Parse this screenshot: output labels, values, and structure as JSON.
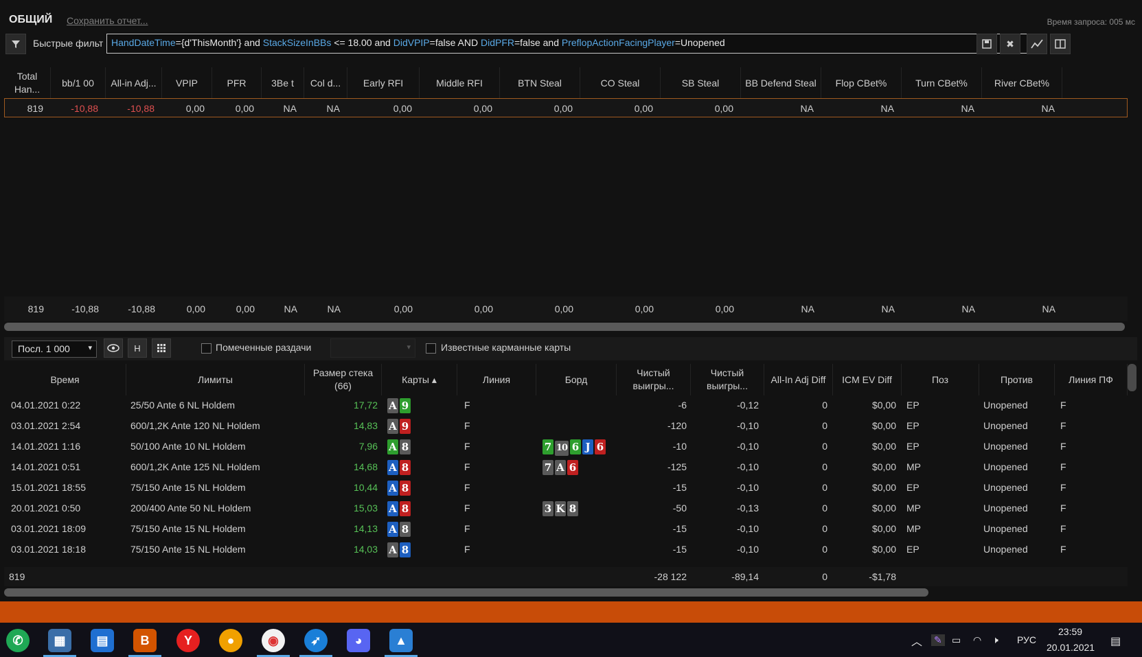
{
  "title": "ОБЩИЙ",
  "save_report": "Сохранить отчет...",
  "query_time": "Время запроса: 005 мс",
  "filter": {
    "label": "Быстрые фильт",
    "query_parts": [
      {
        "t": "HandDateTime",
        "k": true
      },
      {
        "t": "={d'ThisMonth'} and ",
        "k": false
      },
      {
        "t": "StackSizeInBBs",
        "k": true
      },
      {
        "t": " <= 18.00 and ",
        "k": false
      },
      {
        "t": "DidVPIP",
        "k": true
      },
      {
        "t": "=false AND ",
        "k": false
      },
      {
        "t": "DidPFR",
        "k": true
      },
      {
        "t": "=false and ",
        "k": false
      },
      {
        "t": "PreflopActionFacingPlayer",
        "k": true
      },
      {
        "t": "=Unopened",
        "k": false
      }
    ]
  },
  "stats_headers": [
    "Total Han...",
    "bb/1 00",
    "All-in Adj...",
    "VPIP",
    "PFR",
    "3Be t",
    "Col d...",
    "Early RFI",
    "Middle RFI",
    "BTN Steal",
    "CO Steal",
    "SB Steal",
    "BB Defend Steal",
    "Flop CBet%",
    "Turn CBet%",
    "River CBet%"
  ],
  "stats_row": [
    "819",
    "-10,88",
    "-10,88",
    "0,00",
    "0,00",
    "NA",
    "NA",
    "0,00",
    "0,00",
    "0,00",
    "0,00",
    "0,00",
    "NA",
    "NA",
    "NA",
    "NA"
  ],
  "stats_total": [
    "819",
    "-10,88",
    "-10,88",
    "0,00",
    "0,00",
    "NA",
    "NA",
    "0,00",
    "0,00",
    "0,00",
    "0,00",
    "0,00",
    "NA",
    "NA",
    "NA",
    "NA"
  ],
  "toolbar": {
    "select_value": "Посл. 1 000",
    "h_label": "H",
    "marked_hands": "Помеченные раздачи",
    "known_cards": "Известные карманные карты"
  },
  "hands_headers": [
    "Время",
    "Лимиты",
    "Размер стека (66)",
    "Карты",
    "Линия",
    "Борд",
    "Чистый выигры...",
    "Чистый выигры...",
    "All-In Adj Diff",
    "ICM EV Diff",
    "Поз",
    "Против",
    "Линия ПФ"
  ],
  "hands": [
    {
      "time": "04.01.2021 0:22",
      "limit": "25/50 Ante 6 NL Holdem",
      "stack": "17,72",
      "cards": [
        [
          "A",
          "#5a5a5a"
        ],
        [
          "9",
          "#2e9e2e"
        ]
      ],
      "line": "F",
      "board": [],
      "won": "-6",
      "won_bb": "-0,12",
      "aiadj": "0",
      "icm": "$0,00",
      "pos": "EP",
      "vs": "Unopened",
      "pfline": "F"
    },
    {
      "time": "03.01.2021 2:54",
      "limit": "600/1,2K Ante 120 NL Holdem",
      "stack": "14,83",
      "cards": [
        [
          "A",
          "#5a5a5a"
        ],
        [
          "9",
          "#c02020"
        ]
      ],
      "line": "F",
      "board": [],
      "won": "-120",
      "won_bb": "-0,10",
      "aiadj": "0",
      "icm": "$0,00",
      "pos": "EP",
      "vs": "Unopened",
      "pfline": "F"
    },
    {
      "time": "14.01.2021 1:16",
      "limit": "50/100 Ante 10 NL Holdem",
      "stack": "7,96",
      "cards": [
        [
          "A",
          "#2e9e2e"
        ],
        [
          "8",
          "#5a5a5a"
        ]
      ],
      "line": "F",
      "board": [
        [
          "7",
          "#2e9e2e"
        ],
        [
          "10",
          "#5a5a5a"
        ],
        [
          "6",
          "#2e9e2e"
        ],
        [
          "J",
          "#1d5fc0"
        ],
        [
          "6",
          "#c02020"
        ]
      ],
      "won": "-10",
      "won_bb": "-0,10",
      "aiadj": "0",
      "icm": "$0,00",
      "pos": "EP",
      "vs": "Unopened",
      "pfline": "F"
    },
    {
      "time": "14.01.2021 0:51",
      "limit": "600/1,2K Ante 125 NL Holdem",
      "stack": "14,68",
      "cards": [
        [
          "A",
          "#1d5fc0"
        ],
        [
          "8",
          "#c02020"
        ]
      ],
      "line": "F",
      "board": [
        [
          "7",
          "#5a5a5a"
        ],
        [
          "A",
          "#5a5a5a"
        ],
        [
          "6",
          "#c02020"
        ]
      ],
      "won": "-125",
      "won_bb": "-0,10",
      "aiadj": "0",
      "icm": "$0,00",
      "pos": "MP",
      "vs": "Unopened",
      "pfline": "F"
    },
    {
      "time": "15.01.2021 18:55",
      "limit": "75/150 Ante 15 NL Holdem",
      "stack": "10,44",
      "cards": [
        [
          "A",
          "#1d5fc0"
        ],
        [
          "8",
          "#c02020"
        ]
      ],
      "line": "F",
      "board": [],
      "won": "-15",
      "won_bb": "-0,10",
      "aiadj": "0",
      "icm": "$0,00",
      "pos": "EP",
      "vs": "Unopened",
      "pfline": "F"
    },
    {
      "time": "20.01.2021 0:50",
      "limit": "200/400 Ante 50 NL Holdem",
      "stack": "15,03",
      "cards": [
        [
          "A",
          "#1d5fc0"
        ],
        [
          "8",
          "#c02020"
        ]
      ],
      "line": "F",
      "board": [
        [
          "3",
          "#5a5a5a"
        ],
        [
          "K",
          "#5a5a5a"
        ],
        [
          "8",
          "#5a5a5a"
        ]
      ],
      "won": "-50",
      "won_bb": "-0,13",
      "aiadj": "0",
      "icm": "$0,00",
      "pos": "MP",
      "vs": "Unopened",
      "pfline": "F"
    },
    {
      "time": "03.01.2021 18:09",
      "limit": "75/150 Ante 15 NL Holdem",
      "stack": "14,13",
      "cards": [
        [
          "A",
          "#1d5fc0"
        ],
        [
          "8",
          "#5a5a5a"
        ]
      ],
      "line": "F",
      "board": [],
      "won": "-15",
      "won_bb": "-0,10",
      "aiadj": "0",
      "icm": "$0,00",
      "pos": "MP",
      "vs": "Unopened",
      "pfline": "F"
    },
    {
      "time": "03.01.2021 18:18",
      "limit": "75/150 Ante 15 NL Holdem",
      "stack": "14,03",
      "cards": [
        [
          "A",
          "#5a5a5a"
        ],
        [
          "8",
          "#1d5fc0"
        ]
      ],
      "line": "F",
      "board": [],
      "won": "-15",
      "won_bb": "-0,10",
      "aiadj": "0",
      "icm": "$0,00",
      "pos": "EP",
      "vs": "Unopened",
      "pfline": "F"
    }
  ],
  "hands_total": {
    "count": "819",
    "won": "-28 122",
    "won_bb": "-89,14",
    "aiadj": "0",
    "icm": "-$1,78"
  },
  "taskbar": {
    "lang": "РУС",
    "time": "23:59",
    "date": "20.01.2021"
  }
}
